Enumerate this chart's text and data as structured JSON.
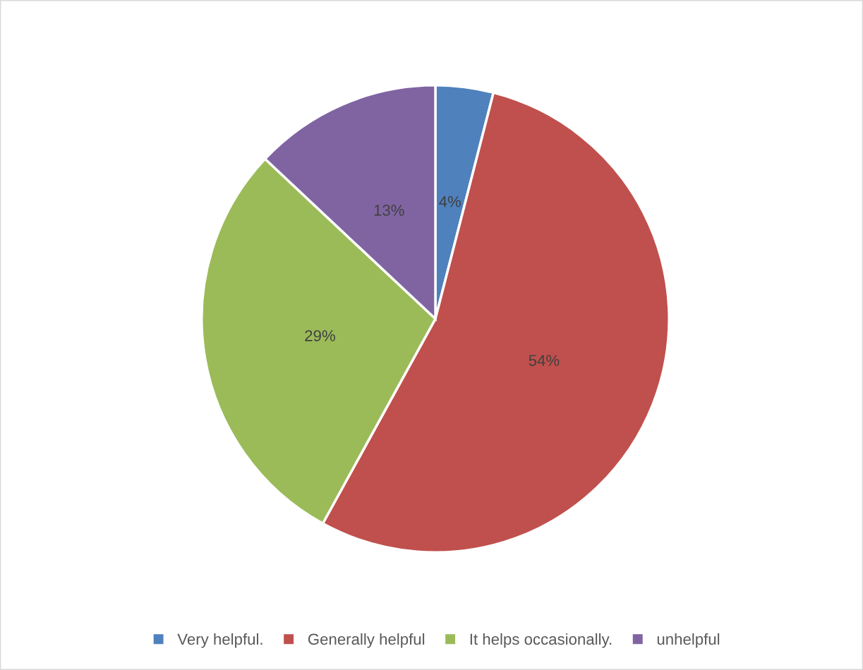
{
  "chart_data": {
    "type": "pie",
    "categories": [
      "Very helpful.",
      "Generally helpful",
      "It helps occasionally.",
      "unhelpful"
    ],
    "values": [
      4,
      54,
      29,
      13
    ],
    "value_labels": [
      "4%",
      "54%",
      "29%",
      "13%"
    ],
    "colors": [
      "#4f81bd",
      "#c0504d",
      "#9bbb59",
      "#8064a2"
    ],
    "legend": "bottom"
  }
}
